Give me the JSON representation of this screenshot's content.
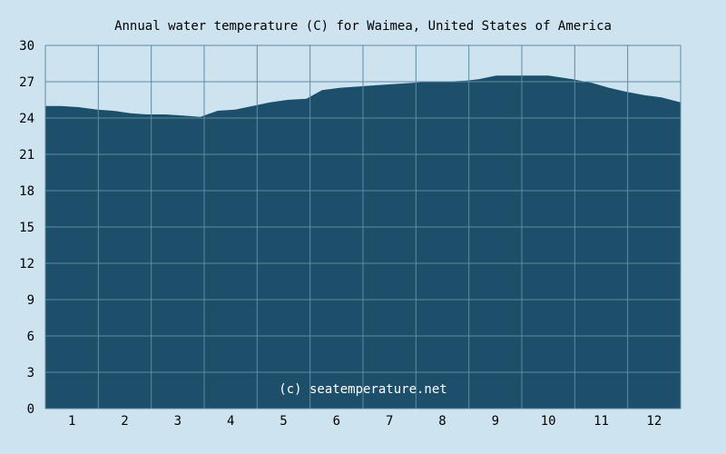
{
  "chart_data": {
    "type": "area",
    "title": "Annual water temperature (C) for Waimea, United States of America",
    "watermark": "(c) seatemperature.net",
    "xlabel": "",
    "ylabel": "",
    "x_ticks": [
      "1",
      "2",
      "3",
      "4",
      "5",
      "6",
      "7",
      "8",
      "9",
      "10",
      "11",
      "12"
    ],
    "y_ticks": [
      "0",
      "3",
      "6",
      "9",
      "12",
      "15",
      "18",
      "21",
      "24",
      "27",
      "30"
    ],
    "xlim": [
      1,
      366
    ],
    "ylim": [
      0,
      30
    ],
    "grid": true,
    "colors": {
      "background": "#cde3ef",
      "area": "#1e4f6a",
      "grid": "#5f8aa4",
      "watermark": "#ffffff"
    },
    "series": [
      {
        "x": [
          1,
          10,
          20,
          31,
          40,
          50,
          59,
          70,
          80,
          90,
          100,
          110,
          120,
          130,
          140,
          151,
          160,
          170,
          181,
          190,
          200,
          212,
          220,
          230,
          243,
          250,
          260,
          273,
          280,
          290,
          304,
          315,
          325,
          334,
          345,
          355,
          366
        ],
        "values": [
          25.0,
          25.0,
          24.9,
          24.7,
          24.6,
          24.4,
          24.3,
          24.3,
          24.2,
          24.1,
          24.6,
          24.7,
          25.0,
          25.3,
          25.5,
          25.6,
          26.3,
          26.5,
          26.6,
          26.7,
          26.8,
          26.9,
          27.0,
          27.0,
          27.1,
          27.2,
          27.5,
          27.5,
          27.5,
          27.5,
          27.2,
          26.9,
          26.5,
          26.2,
          25.9,
          25.7,
          25.3
        ]
      }
    ]
  }
}
